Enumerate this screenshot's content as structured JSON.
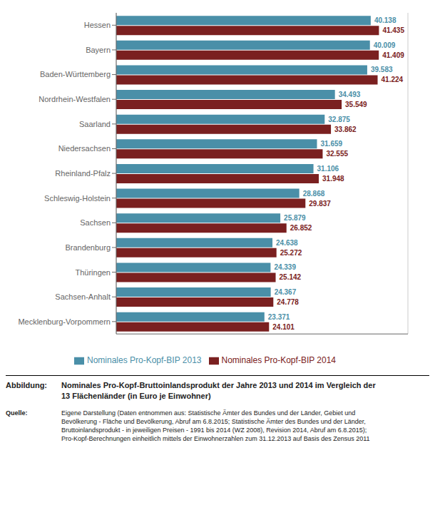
{
  "chart_data": {
    "type": "bar",
    "orientation": "horizontal",
    "categories": [
      "Hessen",
      "Bayern",
      "Baden-Württemberg",
      "Nordrhein-Westfalen",
      "Saarland",
      "Niedersachsen",
      "Rheinland-Pfalz",
      "Schleswig-Holstein",
      "Sachsen",
      "Brandenburg",
      "Thüringen",
      "Sachsen-Anhalt",
      "Mecklenburg-Vorpommern"
    ],
    "series": [
      {
        "name": "Nominales Pro-Kopf-BIP 2013",
        "color": "#4a8fa8",
        "values": [
          40138,
          40009,
          39583,
          34493,
          32875,
          31659,
          31106,
          28868,
          25879,
          24638,
          24339,
          24367,
          23371
        ],
        "value_labels": [
          "40.138",
          "40.009",
          "39.583",
          "34.493",
          "32.875",
          "31.659",
          "31.106",
          "28.868",
          "25.879",
          "24.638",
          "24.339",
          "24.367",
          "23.371"
        ]
      },
      {
        "name": "Nominales Pro-Kopf-BIP 2014",
        "color": "#7a2020",
        "values": [
          41435,
          41409,
          41224,
          35549,
          33862,
          32555,
          31948,
          29837,
          26852,
          25272,
          25142,
          24778,
          24101
        ],
        "value_labels": [
          "41.435",
          "41.409",
          "41.224",
          "35.549",
          "33.862",
          "32.555",
          "31.948",
          "29.837",
          "26.852",
          "25.272",
          "25.142",
          "24.778",
          "24.101"
        ]
      }
    ],
    "xlim": [
      0,
      46000
    ],
    "xticks": [
      0,
      10000,
      20000,
      30000,
      40000
    ],
    "grid": true,
    "data_labels": true,
    "tick_labels": "y",
    "legend": "bottom",
    "annotations": [
      {
        "label": "Abbildung:",
        "text": "Nominales Pro-Kopf-Bruttoinlandsprodukt der Jahre 2013 und 2014 im Vergleich der\n13 Flächenländer (in Euro je Einwohner)"
      },
      {
        "label": "Quelle:",
        "text": "Eigene Darstellung (Daten entnommen aus: Statistische Ämter des Bundes und der Länder, Gebiet und\nBevölkerung - Fläche und Bevölkerung, Abruf am 6.8.2015;  Statistische Ämter des Bundes und der Länder,\nBruttoinlandsprodukt - in jeweiligen Preisen - 1991 bis 2014 (WZ 2008), Revision 2014, Abruf am 6.8.2015);\nPro-Kopf-Berechnungen einheitlich mittels der Einwohnerzahlen zum 31.12.2013 auf Basis des Zensus 2011"
      }
    ]
  }
}
